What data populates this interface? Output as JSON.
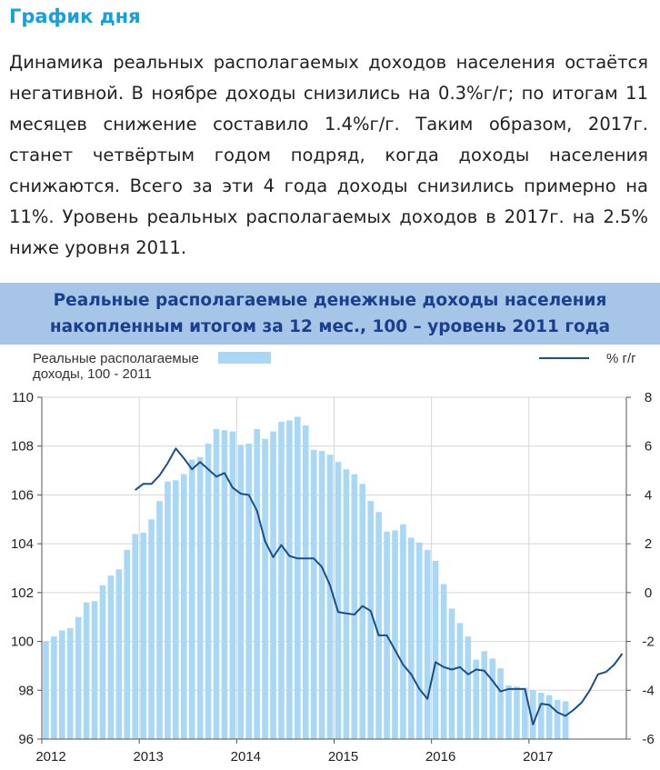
{
  "page": {
    "title": "График дня",
    "intro": "Динамика реальных располагаемых доходов населения остаётся негативной. В ноябре доходы снизились на 0.3%г/г; по итогам 11 месяцев снижение составило 1.4%г/г. Таким образом, 2017г. станет четвёртым годом подряд, когда доходы населения снижаются. Всего за эти 4 года доходы снизились примерно на 11%. Уровень реальных располагаемых доходов в 2017г. на 2.5% ниже уровня 2011."
  },
  "chart_data": {
    "type": "bar+line",
    "title": "Реальные располагаемые денежные доходы населения накопленным итогом за 12 мес., 100 – уровень 2011 года",
    "title_lines": [
      "Реальные располагаемые денежные доходы населения",
      "накопленным итогом за 12 мес., 100 – уровень 2011 года"
    ],
    "legend": {
      "bar_label_line1": "Реальные располагаемые",
      "bar_label_line2": "доходы, 100 - 2011",
      "line_label": "% г/г",
      "placement": "top"
    },
    "x_tick_labels": [
      "2012",
      "2013",
      "2014",
      "2015",
      "2016",
      "2017"
    ],
    "left_axis": {
      "min": 96,
      "max": 110,
      "ticks": [
        "96",
        "98",
        "100",
        "102",
        "104",
        "106",
        "108",
        "110"
      ]
    },
    "right_axis": {
      "min": -6,
      "max": 8,
      "ticks": [
        "-6",
        "-4",
        "-2",
        "0",
        "2",
        "4",
        "6",
        "8"
      ]
    },
    "grid": true,
    "colors": {
      "bars": "#a8d8f6",
      "line": "#1b4f8a",
      "grid": "#d6d6d6",
      "header_bg": "#a7c5e6",
      "header_text": "#1a3f8f",
      "title": "#1aa0d8"
    },
    "series": [
      {
        "kind": "bar",
        "axis": "left",
        "start": "2012-01",
        "values": [
          100.0,
          100.2,
          100.45,
          100.55,
          101.0,
          101.6,
          101.65,
          102.3,
          102.7,
          102.95,
          103.75,
          104.4,
          104.45,
          105.0,
          105.75,
          106.55,
          106.6,
          106.85,
          107.45,
          107.55,
          108.1,
          108.7,
          108.65,
          108.6,
          108.05,
          108.1,
          108.7,
          108.3,
          108.6,
          109.0,
          109.05,
          109.2,
          108.85,
          107.85,
          107.8,
          107.65,
          107.35,
          107.05,
          106.85,
          106.45,
          105.75,
          105.3,
          104.5,
          104.55,
          104.8,
          104.25,
          104.05,
          103.75,
          103.3,
          102.35,
          101.35,
          100.75,
          100.2,
          99.25,
          99.6,
          99.3,
          98.9,
          98.2,
          98.15,
          98.1,
          98.0,
          97.9,
          97.8,
          97.6,
          97.55
        ]
      },
      {
        "kind": "line",
        "axis": "right",
        "start": "2012-12",
        "values": [
          4.2,
          4.45,
          4.45,
          4.8,
          5.3,
          5.9,
          5.5,
          5.05,
          5.35,
          5.05,
          4.75,
          4.9,
          4.3,
          4.05,
          4.0,
          3.35,
          2.1,
          1.45,
          1.95,
          1.5,
          1.4,
          1.4,
          1.4,
          1.05,
          0.3,
          -0.8,
          -0.85,
          -0.9,
          -0.55,
          -0.75,
          -1.75,
          -1.75,
          -2.35,
          -2.95,
          -3.35,
          -3.95,
          -4.35,
          -2.85,
          -3.05,
          -3.15,
          -3.05,
          -3.35,
          -3.15,
          -3.2,
          -3.6,
          -4.05,
          -3.95,
          -3.95,
          -3.95,
          -5.4,
          -4.55,
          -4.6,
          -4.9,
          -5.05,
          -4.8,
          -4.5,
          -4.0,
          -3.35,
          -3.25,
          -2.95,
          -2.5
        ]
      }
    ]
  }
}
